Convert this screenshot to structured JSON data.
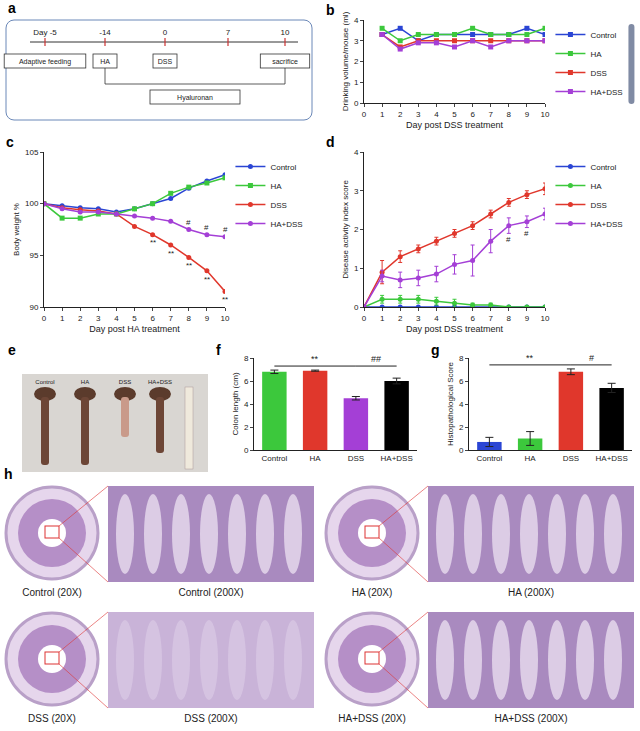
{
  "diagram": {
    "panel": "a",
    "timeline": [
      "Day -5",
      "-14",
      "0",
      "7",
      "10"
    ],
    "boxes": [
      "Adaptive feeding",
      "HA",
      "DSS",
      "sacrifice"
    ],
    "bar": "Hyaluronan"
  },
  "chart_data": [
    {
      "panel": "b",
      "type": "line",
      "x_label": "Day post DSS treatment",
      "y_label": "Drinking volume/mouse (ml)",
      "x": [
        1,
        2,
        3,
        4,
        5,
        6,
        7,
        8,
        9,
        10
      ],
      "xlim": [
        0,
        10
      ],
      "xticks": [
        0,
        1,
        2,
        3,
        4,
        5,
        6,
        7,
        8,
        9,
        10
      ],
      "ylim": [
        0,
        4
      ],
      "yticks": [
        0,
        1,
        2,
        3,
        4
      ],
      "grid": false,
      "legend": "right",
      "series": [
        {
          "name": "Control",
          "color": "#2a45d4",
          "marker": "square",
          "values": [
            3.3,
            3.6,
            3.0,
            3.3,
            3.3,
            3.3,
            3.3,
            3.3,
            3.6,
            3.3
          ]
        },
        {
          "name": "HA",
          "color": "#3cc83c",
          "marker": "square",
          "values": [
            3.6,
            3.0,
            3.3,
            3.3,
            3.3,
            3.6,
            3.3,
            3.3,
            3.3,
            3.6
          ]
        },
        {
          "name": "DSS",
          "color": "#e0372c",
          "marker": "square",
          "values": [
            3.3,
            2.7,
            3.0,
            3.0,
            3.0,
            3.0,
            3.0,
            3.0,
            3.0,
            3.0
          ]
        },
        {
          "name": "HA+DSS",
          "color": "#a43fd6",
          "marker": "square",
          "values": [
            3.3,
            2.6,
            2.9,
            2.9,
            2.7,
            3.0,
            2.7,
            3.0,
            3.0,
            3.0
          ]
        }
      ]
    },
    {
      "panel": "c",
      "type": "line",
      "x_label": "Day post HA treatment",
      "y_label": "Body weight %",
      "x": [
        0,
        1,
        2,
        3,
        4,
        5,
        6,
        7,
        8,
        9,
        10
      ],
      "xlim": [
        0,
        10
      ],
      "xticks": [
        0,
        1,
        2,
        3,
        4,
        5,
        6,
        7,
        8,
        9,
        10
      ],
      "ylim": [
        90,
        105
      ],
      "yticks": [
        90,
        95,
        100,
        105
      ],
      "grid": false,
      "legend": "right",
      "series": [
        {
          "name": "Control",
          "color": "#2a45d4",
          "marker": "circle",
          "values": [
            100,
            99.8,
            99.6,
            99.5,
            99.2,
            99.5,
            100,
            100.5,
            101.5,
            102.2,
            102.8
          ]
        },
        {
          "name": "HA",
          "color": "#3cc83c",
          "marker": "square",
          "values": [
            100,
            98.6,
            98.6,
            99,
            99,
            99.5,
            100,
            101,
            101.6,
            102,
            102.5
          ]
        },
        {
          "name": "DSS",
          "color": "#e0372c",
          "marker": "circle",
          "values": [
            100,
            99.6,
            99.4,
            99.3,
            99,
            97.8,
            97,
            96,
            94.8,
            93.5,
            91.5
          ]
        },
        {
          "name": "HA+DSS",
          "color": "#a43fd6",
          "marker": "circle",
          "values": [
            100,
            99.5,
            99.2,
            99.2,
            99,
            98.8,
            98.6,
            98.3,
            97.5,
            97,
            96.8
          ]
        }
      ],
      "annotations": [
        {
          "text": "**",
          "x": 6,
          "y": 96.2
        },
        {
          "text": "**",
          "x": 7,
          "y": 95.2
        },
        {
          "text": "**",
          "x": 8,
          "y": 94
        },
        {
          "text": "**",
          "x": 9,
          "y": 92.7
        },
        {
          "text": "**",
          "x": 10,
          "y": 90.7
        },
        {
          "text": "#",
          "x": 8,
          "y": 98.2
        },
        {
          "text": "#",
          "x": 9,
          "y": 97.7
        },
        {
          "text": "#",
          "x": 10,
          "y": 97.5
        }
      ]
    },
    {
      "panel": "d",
      "type": "line",
      "x_label": "Day post DSS treatment",
      "y_label": "Disease activity index score",
      "x": [
        0,
        1,
        2,
        3,
        4,
        5,
        6,
        7,
        8,
        9,
        10
      ],
      "xlim": [
        0,
        10
      ],
      "xticks": [
        0,
        1,
        2,
        3,
        4,
        5,
        6,
        7,
        8,
        9,
        10
      ],
      "ylim": [
        0,
        4
      ],
      "yticks": [
        0,
        1,
        2,
        3,
        4
      ],
      "grid": false,
      "legend": "right",
      "series": [
        {
          "name": "Control",
          "color": "#2a45d4",
          "marker": "circle",
          "values": [
            0,
            0,
            0,
            0,
            0,
            0,
            0,
            0,
            0,
            0,
            0
          ]
        },
        {
          "name": "HA",
          "color": "#3cc83c",
          "marker": "circle",
          "values": [
            0,
            0.2,
            0.2,
            0.2,
            0.15,
            0.1,
            0.05,
            0.05,
            0,
            0,
            0
          ],
          "errors": [
            0,
            0.1,
            0.1,
            0.1,
            0.1,
            0.1,
            0.05,
            0.05,
            0,
            0,
            0
          ]
        },
        {
          "name": "DSS",
          "color": "#e0372c",
          "marker": "circle",
          "values": [
            0,
            0.9,
            1.3,
            1.5,
            1.7,
            1.9,
            2.1,
            2.4,
            2.7,
            2.9,
            3.05
          ],
          "errors": [
            0,
            0.3,
            0.15,
            0.1,
            0.1,
            0.1,
            0.1,
            0.1,
            0.1,
            0.1,
            0.15
          ]
        },
        {
          "name": "HA+DSS",
          "color": "#a43fd6",
          "marker": "circle",
          "values": [
            0,
            0.8,
            0.7,
            0.75,
            0.85,
            1.1,
            1.2,
            1.7,
            2.1,
            2.2,
            2.4
          ],
          "errors": [
            0,
            0.15,
            0.2,
            0.2,
            0.2,
            0.25,
            0.4,
            0.3,
            0.2,
            0.15,
            0.15
          ]
        }
      ],
      "annotations": [
        {
          "text": "#",
          "x": 8,
          "y": 1.75
        },
        {
          "text": "#",
          "x": 9,
          "y": 1.9
        }
      ]
    },
    {
      "panel": "f",
      "type": "bar",
      "y_label": "Colon length (cm)",
      "categories": [
        "Control",
        "HA",
        "DSS",
        "HA+DSS"
      ],
      "values": [
        6.8,
        6.9,
        4.5,
        6.0
      ],
      "errors": [
        0.15,
        0.05,
        0.15,
        0.25
      ],
      "colors": [
        "#3cc83c",
        "#e0372c",
        "#a43fd6",
        "#000000"
      ],
      "ylim": [
        0,
        8
      ],
      "yticks": [
        0,
        2,
        4,
        6,
        8
      ],
      "grid": false,
      "brackets": [
        {
          "text": "**",
          "from": 0,
          "to": 2,
          "y": 7.3
        },
        {
          "text": "##",
          "from": 2,
          "to": 3,
          "y": 7.3
        }
      ]
    },
    {
      "panel": "g",
      "type": "bar",
      "y_label": "Histopathological Score",
      "categories": [
        "Control",
        "HA",
        "DSS",
        "HA+DSS"
      ],
      "values": [
        0.7,
        1.0,
        6.8,
        5.4
      ],
      "errors": [
        0.4,
        0.6,
        0.25,
        0.4
      ],
      "colors": [
        "#2a45d4",
        "#3cc83c",
        "#e0372c",
        "#000000"
      ],
      "ylim": [
        0,
        8
      ],
      "yticks": [
        0,
        2,
        4,
        6,
        8
      ],
      "grid": false,
      "brackets": [
        {
          "text": "**",
          "from": 0,
          "to": 2,
          "y": 7.4
        },
        {
          "text": "#",
          "from": 2,
          "to": 3,
          "y": 7.4
        }
      ]
    }
  ],
  "photo": {
    "panel": "e",
    "labels": [
      "Control",
      "HA",
      "DSS",
      "HA+DSS"
    ]
  },
  "histology": {
    "panel": "h",
    "labels": [
      [
        "Control (20X)",
        "Control (200X)"
      ],
      [
        "HA (20X)",
        "HA (200X)"
      ],
      [
        "DSS (20X)",
        "DSS (200X)"
      ],
      [
        "HA+DSS (20X)",
        "HA+DSS (200X)"
      ]
    ]
  }
}
